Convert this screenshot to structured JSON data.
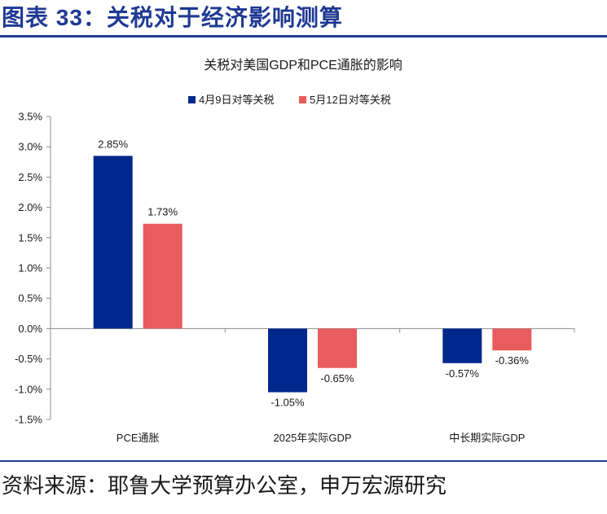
{
  "figure_title": "图表 33：关税对于经济影响测算",
  "source_text": "资料来源：耶鲁大学预算办公室，申万宏源研究",
  "colors": {
    "series_1": "#00288c",
    "series_2": "#e85c5e",
    "accent": "#1f3a93"
  },
  "chart_data": {
    "type": "bar",
    "title": "关税对美国GDP和PCE通胀的影响",
    "xlabel": "",
    "ylabel": "",
    "categories": [
      "PCE通胀",
      "2025年实际GDP",
      "中长期实际GDP"
    ],
    "series": [
      {
        "name": "4月9日对等关税",
        "values": [
          2.85,
          -1.05,
          -0.57
        ],
        "labels": [
          "2.85%",
          "-1.05%",
          "-0.57%"
        ]
      },
      {
        "name": "5月12日对等关税",
        "values": [
          1.73,
          -0.65,
          -0.36
        ],
        "labels": [
          "1.73%",
          "-0.65%",
          "-0.36%"
        ]
      }
    ],
    "ylim": [
      -1.5,
      3.5
    ],
    "ytick_values": [
      3.5,
      3.0,
      2.5,
      2.0,
      1.5,
      1.0,
      0.5,
      0.0,
      -0.5,
      -1.0,
      -1.5
    ],
    "ytick_labels": [
      "3.5%",
      "3.0%",
      "2.5%",
      "2.0%",
      "1.5%",
      "1.0%",
      "0.5%",
      "0.0%",
      "-0.5%",
      "-1.0%",
      "-1.5%"
    ],
    "grid": false,
    "legend_position": "top-center"
  }
}
